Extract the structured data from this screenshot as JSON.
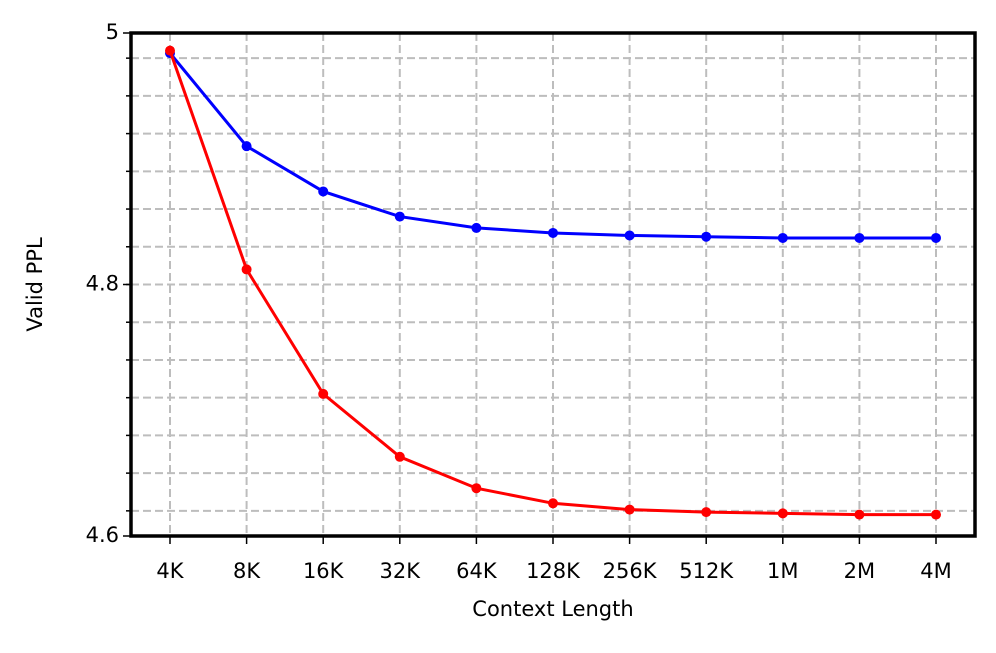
{
  "chart_data": {
    "type": "line",
    "xlabel": "Context Length",
    "ylabel": "Valid PPL",
    "categories": [
      "4K",
      "8K",
      "16K",
      "32K",
      "64K",
      "128K",
      "256K",
      "512K",
      "1M",
      "2M",
      "4M"
    ],
    "series": [
      {
        "color": "#0000ff",
        "values": [
          4.984,
          4.91,
          4.874,
          4.854,
          4.845,
          4.841,
          4.839,
          4.838,
          4.837,
          4.837,
          4.837
        ]
      },
      {
        "color": "#ff0000",
        "values": [
          4.986,
          4.812,
          4.713,
          4.663,
          4.638,
          4.626,
          4.621,
          4.619,
          4.618,
          4.617,
          4.617
        ]
      }
    ],
    "ylim": [
      4.6,
      5.0
    ],
    "yticks": [
      4.6,
      4.8,
      5.0
    ],
    "y_minor_ticks": [
      4.62,
      4.65,
      4.68,
      4.71,
      4.74,
      4.77,
      4.8,
      4.83,
      4.86,
      4.89,
      4.92,
      4.95,
      4.98
    ],
    "grid": true
  }
}
